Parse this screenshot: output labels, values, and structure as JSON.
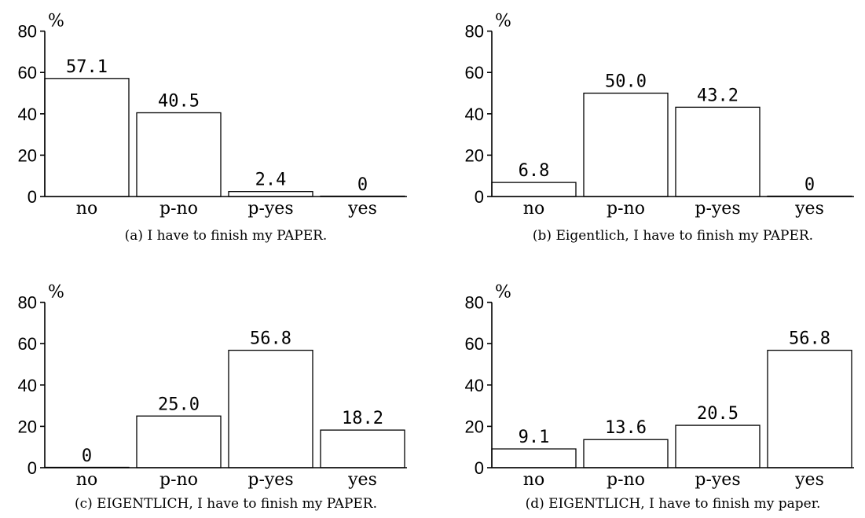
{
  "chart_data": [
    {
      "type": "bar",
      "title": "",
      "ylabel": "%",
      "xlabel": "",
      "ylim": [
        0,
        80
      ],
      "yticks": [
        0,
        20,
        40,
        60,
        80
      ],
      "categories": [
        "no",
        "p-no",
        "p-yes",
        "yes"
      ],
      "values": [
        57.1,
        40.5,
        2.4,
        0
      ],
      "data_labels": [
        "57.1",
        "40.5",
        "2.4",
        "0"
      ],
      "caption": "(a) I have to finish my PAPER."
    },
    {
      "type": "bar",
      "title": "",
      "ylabel": "%",
      "xlabel": "",
      "ylim": [
        0,
        80
      ],
      "yticks": [
        0,
        20,
        40,
        60,
        80
      ],
      "categories": [
        "no",
        "p-no",
        "p-yes",
        "yes"
      ],
      "values": [
        6.8,
        50.0,
        43.2,
        0
      ],
      "data_labels": [
        "6.8",
        "50.0",
        "43.2",
        "0"
      ],
      "caption": "(b) Eigentlich, I have to finish my PAPER."
    },
    {
      "type": "bar",
      "title": "",
      "ylabel": "%",
      "xlabel": "",
      "ylim": [
        0,
        80
      ],
      "yticks": [
        0,
        20,
        40,
        60,
        80
      ],
      "categories": [
        "no",
        "p-no",
        "p-yes",
        "yes"
      ],
      "values": [
        0,
        25.0,
        56.8,
        18.2
      ],
      "data_labels": [
        "0",
        "25.0",
        "56.8",
        "18.2"
      ],
      "caption": "(c) EIGENTLICH, I have to finish my PAPER."
    },
    {
      "type": "bar",
      "title": "",
      "ylabel": "%",
      "xlabel": "",
      "ylim": [
        0,
        80
      ],
      "yticks": [
        0,
        20,
        40,
        60,
        80
      ],
      "categories": [
        "no",
        "p-no",
        "p-yes",
        "yes"
      ],
      "values": [
        9.1,
        13.6,
        20.5,
        56.8
      ],
      "data_labels": [
        "9.1",
        "13.6",
        "20.5",
        "56.8"
      ],
      "caption": "(d) EIGENTLICH, I have to finish my paper."
    }
  ]
}
